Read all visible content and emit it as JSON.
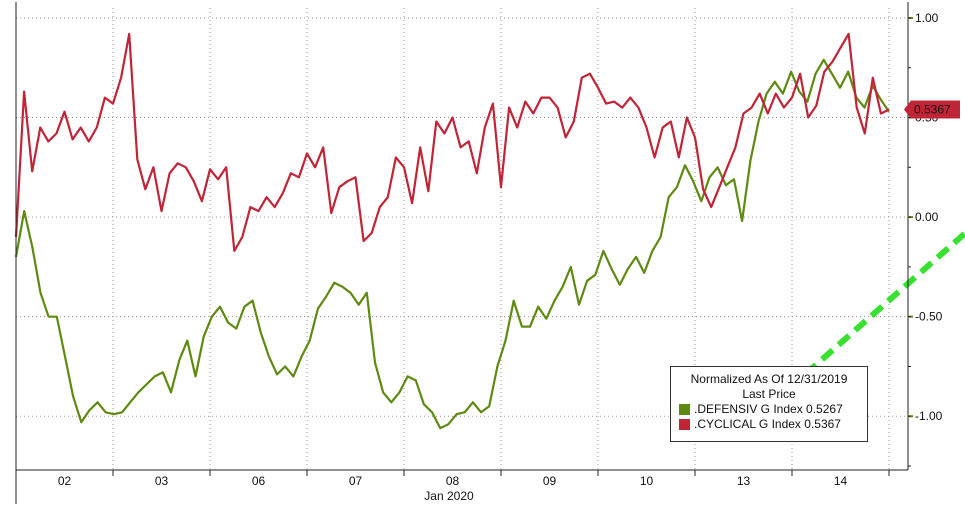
{
  "chart_data": {
    "type": "line",
    "title": "",
    "xlabel": "Jan 2020",
    "ylabel": "",
    "x_ticks": [
      "02",
      "03",
      "06",
      "07",
      "08",
      "09",
      "10",
      "13",
      "14"
    ],
    "y_ticks": [
      "1.00",
      "0.50",
      "0.00",
      "-0.50",
      "-1.00"
    ],
    "y_tick_values": [
      1.0,
      0.5,
      0.0,
      -0.5,
      -1.0
    ],
    "ylim": [
      -1.27,
      1.05
    ],
    "grid": true,
    "legend_position": "bottom-right",
    "legend": {
      "title_line1": "Normalized As Of 12/31/2019",
      "title_line2": "Last Price"
    },
    "last_price_label": "0.5367",
    "series": [
      {
        "name": ".DEFENSIV G Index",
        "last": "0.5267",
        "color": "#5e8a12",
        "values": [
          -0.2,
          0.03,
          -0.15,
          -0.38,
          -0.5,
          -0.5,
          -0.7,
          -0.9,
          -1.03,
          -0.97,
          -0.93,
          -0.98,
          -0.99,
          -0.98,
          -0.93,
          -0.88,
          -0.84,
          -0.8,
          -0.78,
          -0.88,
          -0.72,
          -0.62,
          -0.8,
          -0.6,
          -0.5,
          -0.45,
          -0.53,
          -0.56,
          -0.45,
          -0.42,
          -0.58,
          -0.7,
          -0.79,
          -0.75,
          -0.8,
          -0.7,
          -0.62,
          -0.46,
          -0.4,
          -0.33,
          -0.35,
          -0.38,
          -0.44,
          -0.38,
          -0.73,
          -0.88,
          -0.93,
          -0.88,
          -0.8,
          -0.82,
          -0.94,
          -0.98,
          -1.06,
          -1.04,
          -0.99,
          -0.98,
          -0.93,
          -0.98,
          -0.95,
          -0.75,
          -0.62,
          -0.42,
          -0.55,
          -0.55,
          -0.45,
          -0.51,
          -0.42,
          -0.35,
          -0.25,
          -0.44,
          -0.32,
          -0.29,
          -0.17,
          -0.26,
          -0.34,
          -0.26,
          -0.2,
          -0.28,
          -0.17,
          -0.1,
          0.1,
          0.15,
          0.26,
          0.18,
          0.08,
          0.2,
          0.25,
          0.16,
          0.19,
          -0.02,
          0.28,
          0.48,
          0.62,
          0.68,
          0.62,
          0.73,
          0.63,
          0.58,
          0.72,
          0.79,
          0.72,
          0.65,
          0.73,
          0.6,
          0.55,
          0.66,
          0.59,
          0.53
        ]
      },
      {
        "name": ".CYCLICAL G Index",
        "last": "0.5367",
        "color": "#c22437",
        "values": [
          -0.1,
          0.63,
          0.23,
          0.45,
          0.38,
          0.42,
          0.53,
          0.39,
          0.45,
          0.38,
          0.45,
          0.6,
          0.57,
          0.7,
          0.92,
          0.29,
          0.14,
          0.25,
          0.03,
          0.22,
          0.27,
          0.25,
          0.18,
          0.08,
          0.24,
          0.19,
          0.25,
          -0.17,
          -0.1,
          0.05,
          0.03,
          0.1,
          0.05,
          0.12,
          0.22,
          0.2,
          0.32,
          0.25,
          0.35,
          0.02,
          0.15,
          0.18,
          0.2,
          -0.12,
          -0.08,
          0.05,
          0.1,
          0.3,
          0.25,
          0.07,
          0.35,
          0.13,
          0.48,
          0.42,
          0.5,
          0.35,
          0.38,
          0.22,
          0.45,
          0.57,
          0.15,
          0.55,
          0.45,
          0.58,
          0.52,
          0.6,
          0.6,
          0.55,
          0.4,
          0.48,
          0.7,
          0.72,
          0.65,
          0.57,
          0.58,
          0.55,
          0.6,
          0.55,
          0.45,
          0.3,
          0.45,
          0.48,
          0.3,
          0.5,
          0.4,
          0.14,
          0.05,
          0.15,
          0.25,
          0.35,
          0.52,
          0.55,
          0.62,
          0.52,
          0.62,
          0.55,
          0.6,
          0.72,
          0.5,
          0.56,
          0.73,
          0.78,
          0.85,
          0.92,
          0.55,
          0.42,
          0.7,
          0.52,
          0.54
        ]
      }
    ],
    "annotation_arrow": {
      "color": "#38e030",
      "from": [
        7.46,
        -1.08
      ],
      "to": [
        11.3,
        0.57
      ]
    }
  }
}
